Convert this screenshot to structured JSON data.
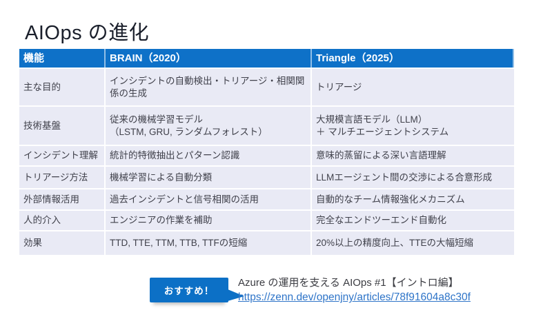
{
  "slide": {
    "title": "AIOps の進化"
  },
  "comparison_table": {
    "column_headers": [
      "機能",
      "BRAIN（2020）",
      "Triangle（2025）"
    ],
    "rows": [
      {
        "feature": "主な目的",
        "brain": "インシデントの自動検出・トリアージ・相関関係の生成",
        "triangle": "トリアージ"
      },
      {
        "feature": "技術基盤",
        "brain": "従来の機械学習モデル\n（LSTM, GRU, ランダムフォレスト）",
        "triangle": "大規模言語モデル（LLM）\n＋ マルチエージェントシステム"
      },
      {
        "feature": "インシデント理解",
        "brain": "統計的特徴抽出とパターン認識",
        "triangle": "意味的蒸留による深い言語理解"
      },
      {
        "feature": "トリアージ方法",
        "brain": "機械学習による自動分類",
        "triangle": "LLMエージェント間の交渉による合意形成"
      },
      {
        "feature": "外部情報活用",
        "brain": "過去インシデントと信号相関の活用",
        "triangle": "自動的なチーム情報強化メカニズム"
      },
      {
        "feature": "人的介入",
        "brain": "エンジニアの作業を補助",
        "triangle": "完全なエンドツーエンド自動化"
      },
      {
        "feature": "効果",
        "brain": "TTD, TTE, TTM, TTB, TTFの短縮",
        "triangle": "20%以上の精度向上、TTEの大幅短縮"
      }
    ]
  },
  "footer": {
    "badge_label": "おすすめ！",
    "reference_title": "Azure の運用を支える AIOps #1【イントロ編】",
    "reference_url": "https://zenn.dev/openjny/articles/78f91604a8c30f"
  },
  "colors": {
    "accent_blue": "#0E71C8",
    "table_row_bg": "#E9EAF5",
    "title_text": "#1A1F2B",
    "body_text": "#40414B",
    "link_blue": "#2E74C8"
  }
}
